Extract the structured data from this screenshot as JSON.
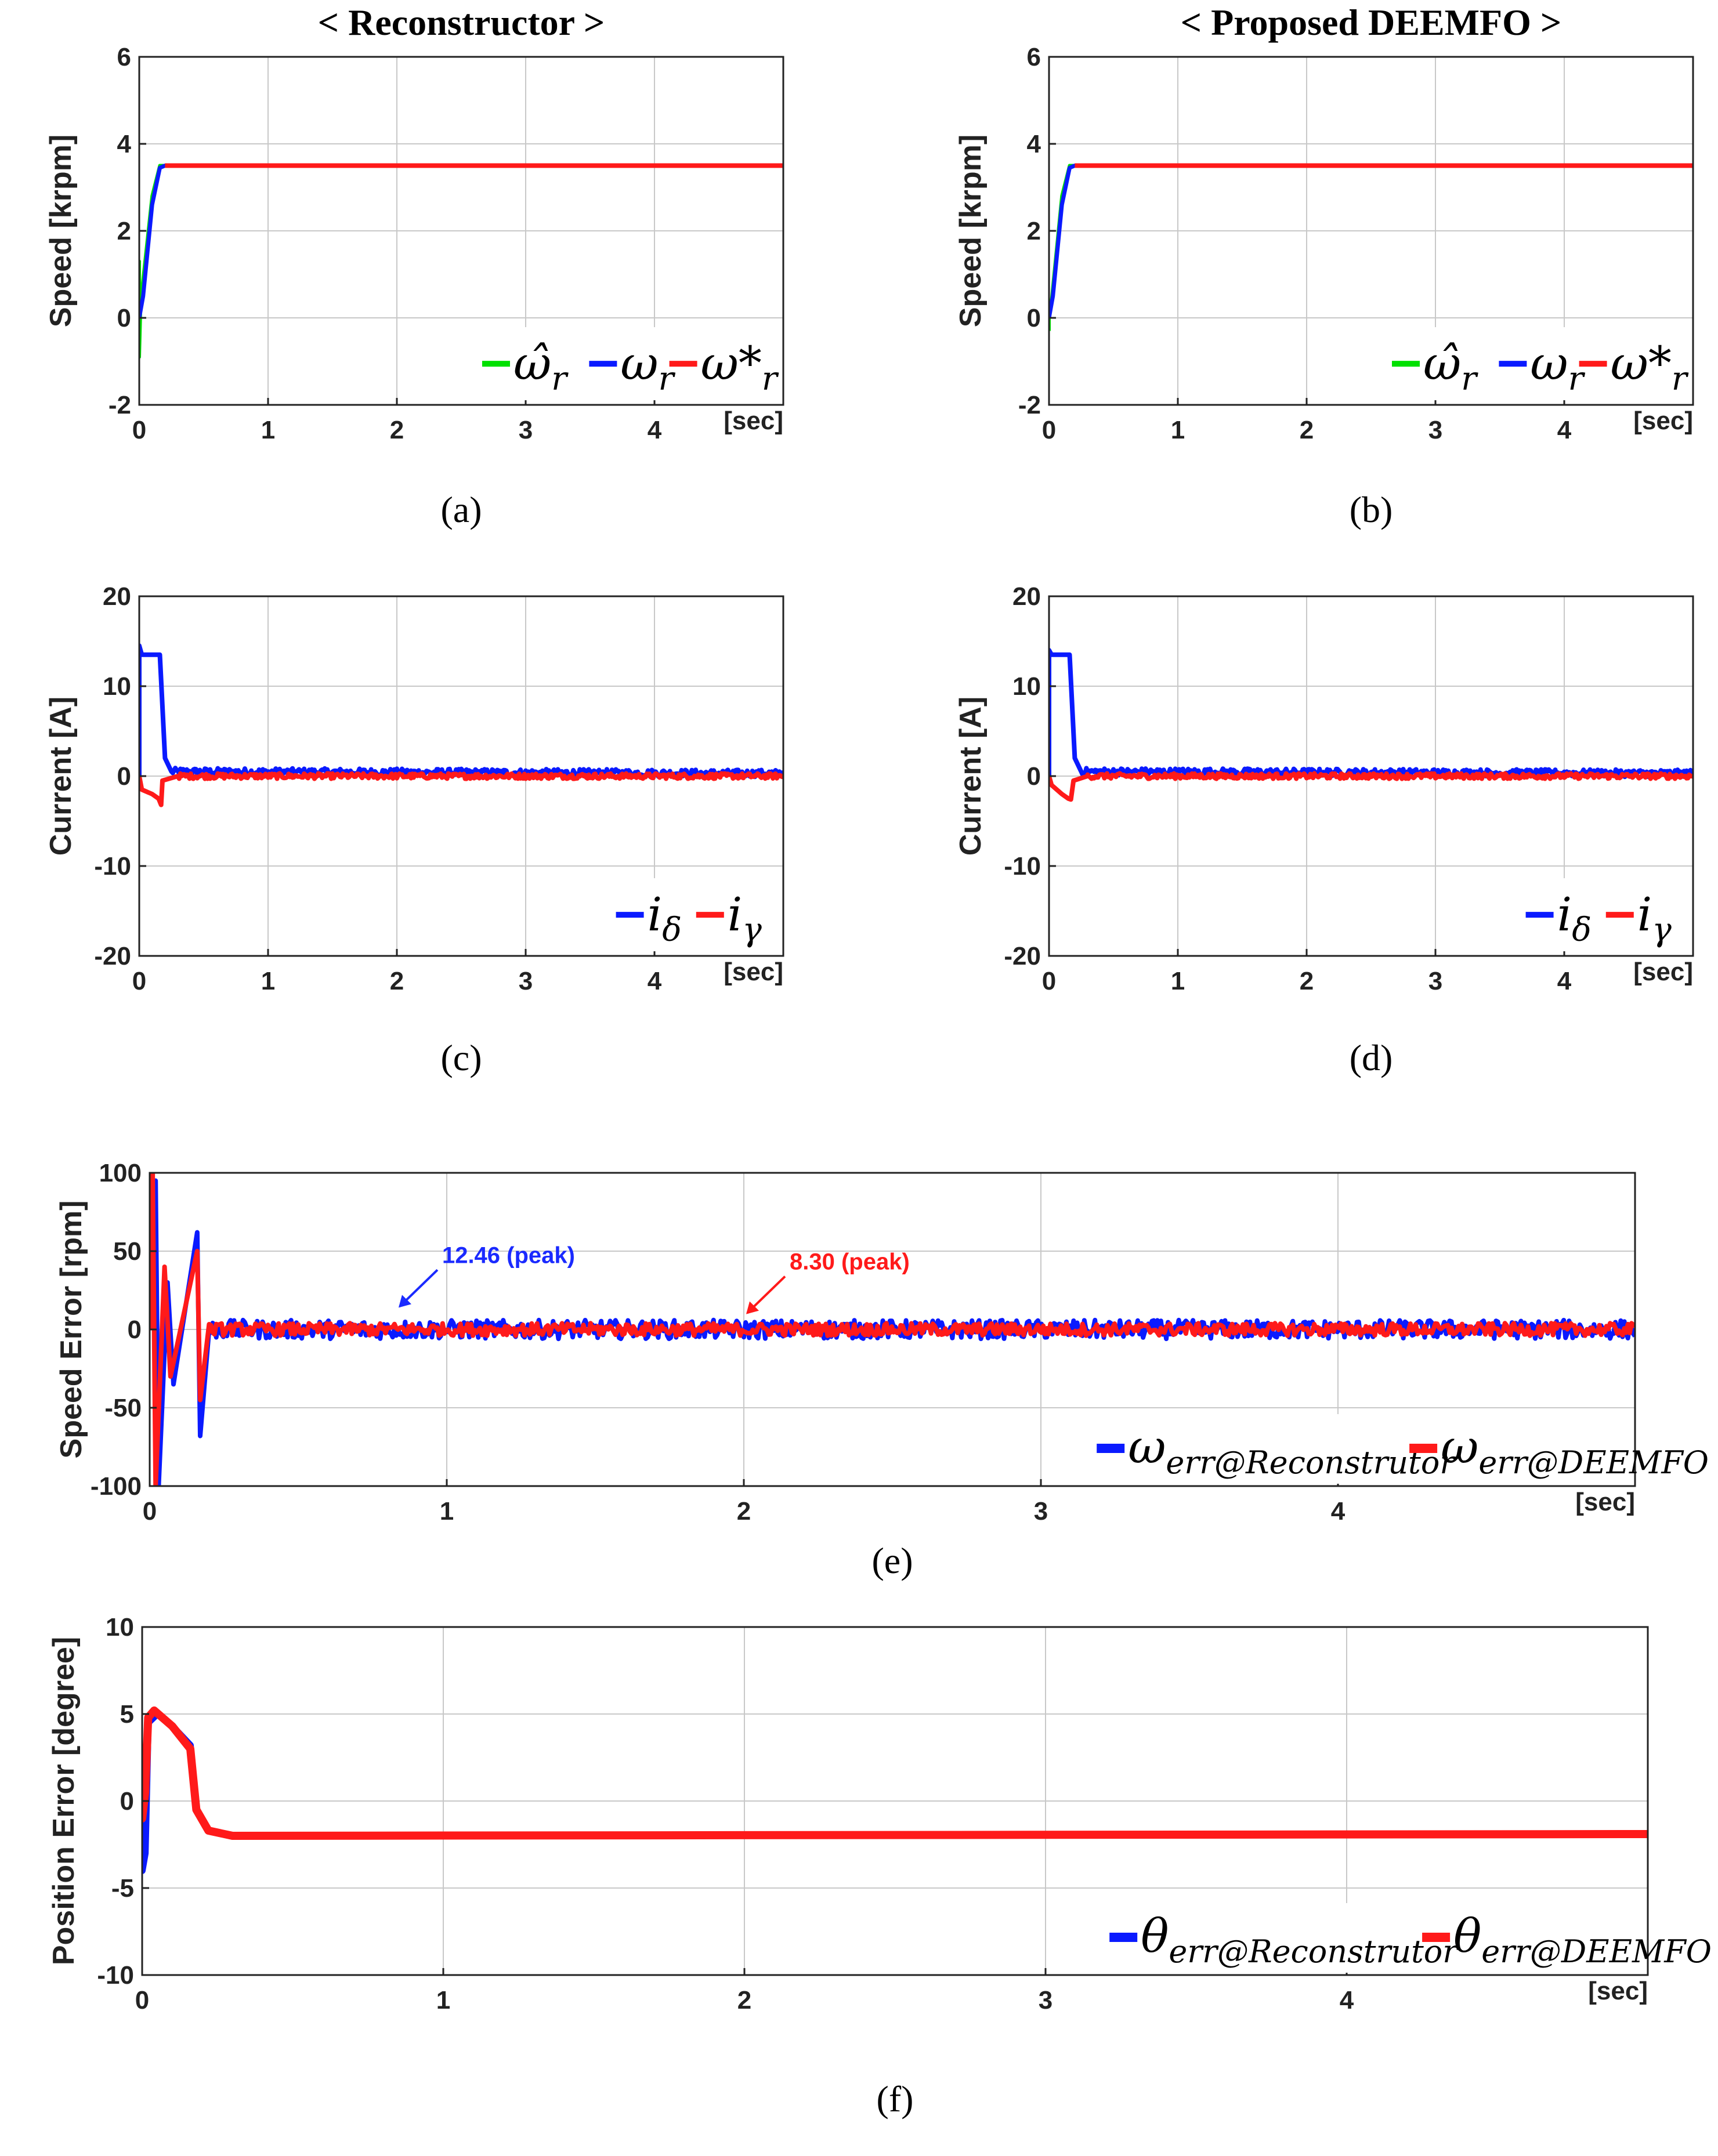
{
  "chart_data": [
    {
      "id": "a",
      "type": "line",
      "title": "< Reconstructor >",
      "caption": "(a)",
      "ylabel": "Speed [krpm]",
      "xunit": "[sec]",
      "xlim": [
        0,
        5
      ],
      "ylim": [
        -2,
        6
      ],
      "xticks": [
        0,
        1,
        2,
        3,
        4
      ],
      "yticks": [
        -2,
        0,
        2,
        4,
        6
      ],
      "grid": true,
      "legend": {
        "position": "bottom-right",
        "entries": [
          "ω̂",
          "ω",
          "ω*"
        ],
        "subs": [
          "r",
          "r",
          "r"
        ]
      },
      "series": [
        {
          "name": "ω̂r",
          "color": "#00e000",
          "width": 6,
          "points": [
            [
              0,
              0
            ],
            [
              0,
              1.3
            ],
            [
              0,
              -0.9
            ],
            [
              0.01,
              0.2
            ],
            [
              0.02,
              0.6
            ],
            [
              0.1,
              2.8
            ],
            [
              0.16,
              3.5
            ],
            [
              5,
              3.5
            ]
          ]
        },
        {
          "name": "ωr",
          "color": "#0a1aff",
          "width": 7,
          "points": [
            [
              0,
              0
            ],
            [
              0.03,
              0.5
            ],
            [
              0.1,
              2.6
            ],
            [
              0.16,
              3.45
            ],
            [
              0.2,
              3.5
            ],
            [
              5,
              3.5
            ]
          ]
        },
        {
          "name": "ωr*",
          "color": "#ff1a1a",
          "width": 8,
          "points": [
            [
              0.2,
              3.5
            ],
            [
              5,
              3.5
            ]
          ]
        }
      ]
    },
    {
      "id": "b",
      "type": "line",
      "title": "< Proposed DEEMFO >",
      "caption": "(b)",
      "ylabel": "Speed [krpm]",
      "xunit": "[sec]",
      "xlim": [
        0,
        5
      ],
      "ylim": [
        -2,
        6
      ],
      "xticks": [
        0,
        1,
        2,
        3,
        4
      ],
      "yticks": [
        -2,
        0,
        2,
        4,
        6
      ],
      "grid": true,
      "legend": {
        "position": "bottom-right",
        "entries": [
          "ω̂",
          "ω",
          "ω*"
        ],
        "subs": [
          "r",
          "r",
          "r"
        ]
      },
      "series": [
        {
          "name": "ω̂r",
          "color": "#00e000",
          "width": 6,
          "points": [
            [
              0,
              -0.3
            ],
            [
              0,
              0.3
            ],
            [
              0.02,
              0.4
            ],
            [
              0.1,
              2.8
            ],
            [
              0.16,
              3.5
            ],
            [
              5,
              3.5
            ]
          ]
        },
        {
          "name": "ωr",
          "color": "#0a1aff",
          "width": 7,
          "points": [
            [
              0,
              0
            ],
            [
              0.03,
              0.5
            ],
            [
              0.1,
              2.6
            ],
            [
              0.16,
              3.45
            ],
            [
              0.2,
              3.5
            ],
            [
              5,
              3.5
            ]
          ]
        },
        {
          "name": "ωr*",
          "color": "#ff1a1a",
          "width": 8,
          "points": [
            [
              0.2,
              3.5
            ],
            [
              5,
              3.5
            ]
          ]
        }
      ]
    },
    {
      "id": "c",
      "type": "line",
      "caption": "(c)",
      "ylabel": "Current [A]",
      "xunit": "[sec]",
      "xlim": [
        0,
        5
      ],
      "ylim": [
        -20,
        20
      ],
      "xticks": [
        0,
        1,
        2,
        3,
        4
      ],
      "yticks": [
        -20,
        -10,
        0,
        10,
        20
      ],
      "grid": true,
      "legend": {
        "position": "bottom-right",
        "entries": [
          "i",
          "i"
        ],
        "subs": [
          "δ",
          "γ"
        ]
      },
      "series": [
        {
          "name": "iδ",
          "color": "#0a1aff",
          "width": 8,
          "points": [
            [
              0,
              0
            ],
            [
              0,
              14.5
            ],
            [
              0.02,
              13.5
            ],
            [
              0.16,
              13.5
            ],
            [
              0.2,
              2
            ],
            [
              0.25,
              0.5
            ],
            [
              5,
              0.3
            ]
          ],
          "noise": 0.4
        },
        {
          "name": "iγ",
          "color": "#ff1a1a",
          "width": 8,
          "points": [
            [
              0,
              0
            ],
            [
              0.02,
              -1.5
            ],
            [
              0.1,
              -2
            ],
            [
              0.15,
              -2.5
            ],
            [
              0.17,
              -3.2
            ],
            [
              0.18,
              -0.5
            ],
            [
              0.3,
              0
            ],
            [
              5,
              0
            ]
          ],
          "noise": 0.3
        }
      ]
    },
    {
      "id": "d",
      "type": "line",
      "caption": "(d)",
      "ylabel": "Current [A]",
      "xunit": "[sec]",
      "xlim": [
        0,
        5
      ],
      "ylim": [
        -20,
        20
      ],
      "xticks": [
        0,
        1,
        2,
        3,
        4
      ],
      "yticks": [
        -20,
        -10,
        0,
        10,
        20
      ],
      "grid": true,
      "legend": {
        "position": "bottom-right",
        "entries": [
          "i",
          "i"
        ],
        "subs": [
          "δ",
          "γ"
        ]
      },
      "series": [
        {
          "name": "iδ",
          "color": "#0a1aff",
          "width": 8,
          "points": [
            [
              0,
              0
            ],
            [
              0,
              14
            ],
            [
              0.02,
              13.5
            ],
            [
              0.16,
              13.5
            ],
            [
              0.2,
              2
            ],
            [
              0.25,
              0.5
            ],
            [
              5,
              0.3
            ]
          ],
          "noise": 0.4
        },
        {
          "name": "iγ",
          "color": "#ff1a1a",
          "width": 8,
          "points": [
            [
              0,
              0
            ],
            [
              0.02,
              -1
            ],
            [
              0.1,
              -2
            ],
            [
              0.15,
              -2.5
            ],
            [
              0.17,
              -2.6
            ],
            [
              0.19,
              -0.5
            ],
            [
              0.3,
              0
            ],
            [
              5,
              0
            ]
          ],
          "noise": 0.3
        }
      ]
    },
    {
      "id": "e",
      "type": "line",
      "caption": "(e)",
      "ylabel": "Speed Error [rpm]",
      "xunit": "[sec]",
      "xlim": [
        0,
        5
      ],
      "ylim": [
        -100,
        100
      ],
      "xticks": [
        0,
        1,
        2,
        3,
        4
      ],
      "yticks": [
        -100,
        -50,
        0,
        50,
        100
      ],
      "grid": true,
      "legend": {
        "position": "bottom-right",
        "entries": [
          "ω",
          "ω"
        ],
        "subs": [
          "err@Reconstrutor",
          "err@DEEMFO"
        ]
      },
      "series": [
        {
          "name": "ωerr@Reconstrutor",
          "color": "#0a1aff",
          "width": 8,
          "band": 6,
          "spikes": [
            [
              0.02,
              95
            ],
            [
              0.03,
              -100
            ],
            [
              0.06,
              30
            ],
            [
              0.08,
              -35
            ],
            [
              0.16,
              62
            ],
            [
              0.17,
              -68
            ]
          ]
        },
        {
          "name": "ωerr@DEEMFO",
          "color": "#ff1a1a",
          "width": 8,
          "band": 4,
          "spikes": [
            [
              0.01,
              100
            ],
            [
              0.02,
              -100
            ],
            [
              0.05,
              40
            ],
            [
              0.07,
              -30
            ],
            [
              0.16,
              50
            ],
            [
              0.17,
              -45
            ]
          ]
        }
      ],
      "annotations": [
        {
          "text": "12.46 (peak)",
          "x": 0.83,
          "y": 12.46,
          "color": "#1a2aff"
        },
        {
          "text": "8.30 (peak)",
          "x": 2.0,
          "y": 8.3,
          "color": "#ff1a1a"
        }
      ]
    },
    {
      "id": "f",
      "type": "line",
      "caption": "(f)",
      "ylabel": "Position Error [degree]",
      "xunit": "[sec]",
      "xlim": [
        0,
        5
      ],
      "ylim": [
        -10,
        10
      ],
      "xticks": [
        0,
        1,
        2,
        3,
        4
      ],
      "yticks": [
        -10,
        -5,
        0,
        5,
        10
      ],
      "grid": true,
      "legend": {
        "position": "bottom-right",
        "entries": [
          "θ",
          "θ"
        ],
        "subs": [
          "err@Reconstrutor",
          "err@DEEMFO"
        ]
      },
      "series": [
        {
          "name": "θerr@Reconstrutor",
          "color": "#0a1aff",
          "width": 12,
          "points": [
            [
              0,
              0
            ],
            [
              0,
              -4
            ],
            [
              0.01,
              -3
            ],
            [
              0.02,
              4.5
            ],
            [
              0.05,
              5
            ],
            [
              0.1,
              4.3
            ],
            [
              0.16,
              3.2
            ],
            [
              0.18,
              -0.5
            ],
            [
              0.22,
              -1.7
            ],
            [
              0.3,
              -2
            ],
            [
              5,
              -1.9
            ]
          ]
        },
        {
          "name": "θerr@DEEMFO",
          "color": "#ff1a1a",
          "width": 14,
          "points": [
            [
              0,
              0
            ],
            [
              0,
              -1
            ],
            [
              0.01,
              0.5
            ],
            [
              0.02,
              4.8
            ],
            [
              0.04,
              5.2
            ],
            [
              0.1,
              4.3
            ],
            [
              0.16,
              3
            ],
            [
              0.18,
              -0.5
            ],
            [
              0.22,
              -1.7
            ],
            [
              0.3,
              -2
            ],
            [
              5,
              -1.9
            ]
          ]
        }
      ]
    }
  ]
}
